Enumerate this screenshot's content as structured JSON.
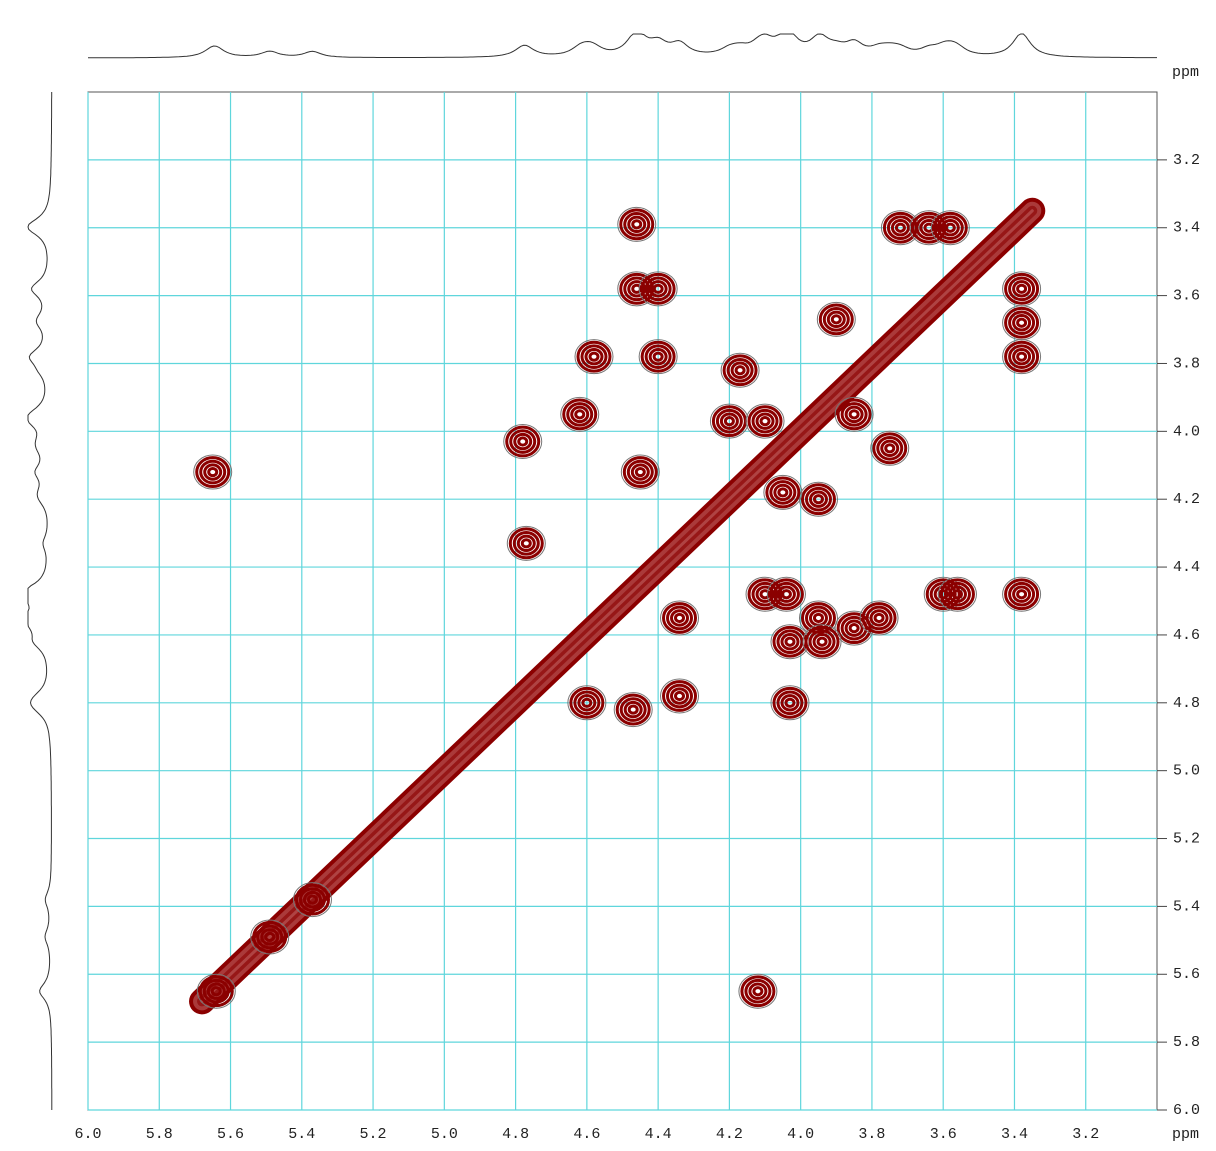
{
  "chart_data": {
    "type": "contour",
    "x_label": "ppm",
    "y_label": "ppm",
    "xlim": [
      6.0,
      3.0
    ],
    "ylim": [
      3.0,
      6.0
    ],
    "xticks": [
      {
        "value": 6,
        "label": "6.0"
      },
      5.8,
      5.6,
      5.4,
      5.2,
      {
        "value": 5,
        "label": "5.0"
      },
      4.8,
      4.6,
      4.4,
      4.2,
      {
        "value": 4,
        "label": "4.0"
      },
      3.8,
      3.6,
      3.4,
      3.2
    ],
    "yticks": [
      3.2,
      3.4,
      3.6,
      3.8,
      {
        "value": 4,
        "label": "4.0"
      },
      4.2,
      4.4,
      4.6,
      4.8,
      {
        "value": 5,
        "label": "5.0"
      },
      5.2,
      5.4,
      5.6,
      5.8,
      {
        "value": 6,
        "label": "6.0"
      }
    ],
    "grid": true,
    "grid_color": "#5fd6dc",
    "series": [
      {
        "color": "#8b0000",
        "x": [
          4.46,
          3.72,
          3.64,
          3.58,
          4.46,
          4.4,
          3.38,
          3.38,
          3.38,
          4.58,
          4.62,
          4.78,
          4.45,
          5.65,
          4.4,
          4.17,
          4.2,
          4.1,
          3.9,
          3.95,
          4.05,
          3.85,
          3.75,
          4.1,
          4.04,
          3.95,
          3.85,
          3.6,
          3.56,
          3.38,
          3.78,
          4.03,
          3.94,
          4.03,
          4.34,
          4.34,
          4.47,
          4.6,
          4.77,
          4.12,
          5.64,
          5.49,
          5.37
        ],
        "y": [
          3.39,
          3.4,
          3.4,
          3.4,
          3.58,
          3.58,
          3.58,
          3.68,
          3.78,
          3.78,
          3.95,
          4.03,
          4.12,
          4.12,
          3.78,
          3.82,
          3.97,
          3.97,
          3.67,
          4.2,
          4.18,
          3.95,
          4.05,
          4.48,
          4.48,
          4.55,
          4.58,
          4.48,
          4.48,
          4.48,
          4.55,
          4.62,
          4.62,
          4.8,
          4.55,
          4.78,
          4.82,
          4.8,
          4.33,
          5.65,
          5.65,
          5.49,
          5.38
        ]
      },
      {
        "color": "#8b0000",
        "x": [
          5.68,
          3.35
        ],
        "y": [
          5.68,
          3.35
        ]
      }
    ]
  }
}
